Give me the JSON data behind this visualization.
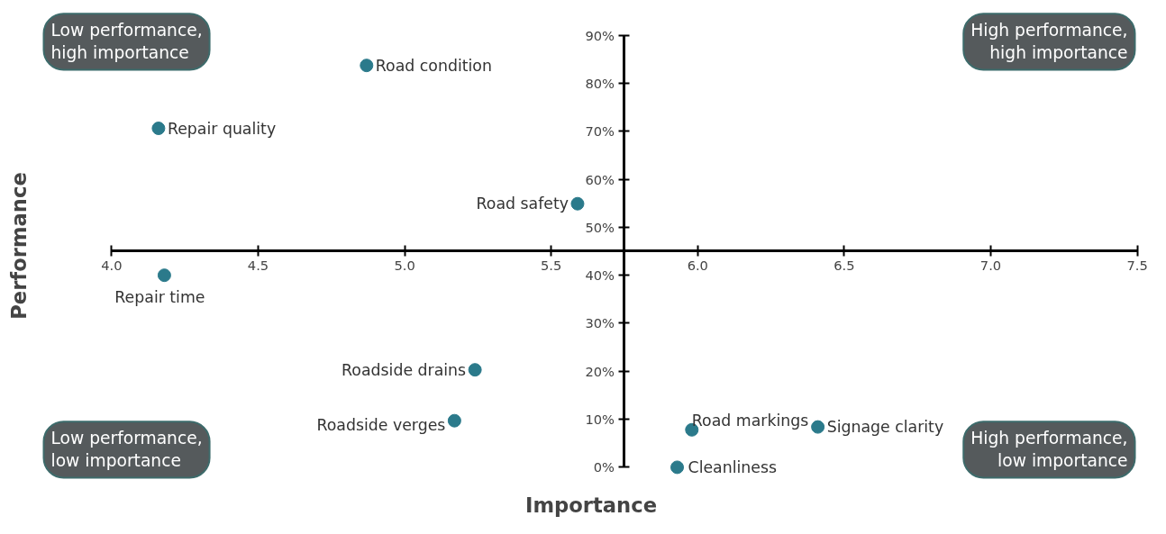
{
  "chart_data": {
    "type": "scatter",
    "xlabel": "Importance",
    "ylabel": "Performance",
    "series": [
      {
        "color": "#2b7a8b",
        "x": [
          4.87,
          4.16,
          5.59,
          4.18,
          5.24,
          5.17,
          5.98,
          6.41,
          5.93
        ],
        "values": [
          83.7,
          70.6,
          54.9,
          40.0,
          20.3,
          9.7,
          7.8,
          8.4,
          0.0
        ]
      }
    ],
    "annotations": [
      {
        "text": "Road condition",
        "x": 4.87,
        "y": 83.7
      },
      {
        "text": "Repair quality",
        "x": 4.16,
        "y": 70.6
      },
      {
        "text": "Road safety",
        "x": 5.59,
        "y": 54.9
      },
      {
        "text": "Repair time",
        "x": 4.18,
        "y": 40.0
      },
      {
        "text": "Roadside drains",
        "x": 5.24,
        "y": 20.3
      },
      {
        "text": "Roadside verges",
        "x": 5.17,
        "y": 9.7
      },
      {
        "text": "Road markings",
        "x": 5.98,
        "y": 7.8
      },
      {
        "text": "Signage clarity",
        "x": 6.41,
        "y": 8.4
      },
      {
        "text": "Cleanliness",
        "x": 5.93,
        "y": 0.0
      },
      "Low performance,\nhigh importance",
      "High performance,\nhigh importance",
      "Low performance,\nlow importance",
      "High performance,\nlow importance"
    ],
    "xlim": [
      4.0,
      7.5
    ],
    "ylim": [
      0,
      90
    ],
    "xticks": [
      {
        "value": 4.0,
        "label": "4.0"
      },
      4.5,
      {
        "value": 5.0,
        "label": "5.0"
      },
      5.5,
      {
        "value": 6.0,
        "label": "6.0"
      },
      6.5,
      {
        "value": 7.0,
        "label": "7.0"
      },
      7.5
    ],
    "yticks": [
      {
        "value": 0,
        "label": "0%"
      },
      {
        "value": 10,
        "label": "10%"
      },
      {
        "value": 20,
        "label": "20%"
      },
      {
        "value": 30,
        "label": "30%"
      },
      {
        "value": 40,
        "label": "40%"
      },
      {
        "value": 50,
        "label": "50%"
      },
      {
        "value": 60,
        "label": "60%"
      },
      {
        "value": 70,
        "label": "70%"
      },
      {
        "value": 80,
        "label": "80%"
      },
      {
        "value": 90,
        "label": "90%"
      }
    ],
    "grid": false,
    "marker": "circle"
  }
}
